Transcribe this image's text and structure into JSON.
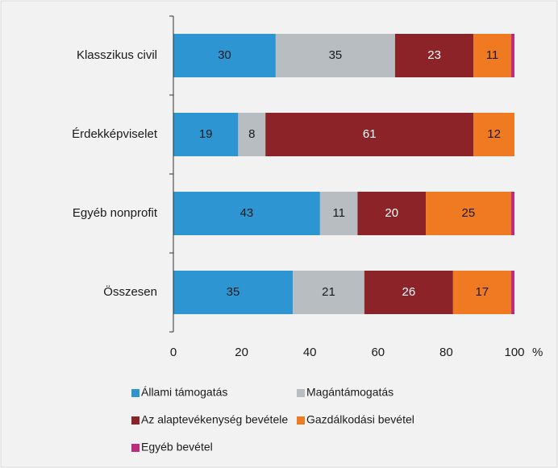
{
  "chart_data": {
    "type": "stacked_barh",
    "categories": [
      "Klasszikus civil",
      "Érdekképviselet",
      "Egyéb nonprofit",
      "Összesen"
    ],
    "series": [
      {
        "name": "Állami támogatás",
        "color": "#2e95d3",
        "values": [
          30,
          19,
          43,
          35
        ]
      },
      {
        "name": "Magántámogatás",
        "color": "#b8bdc1",
        "values": [
          35,
          8,
          11,
          21
        ]
      },
      {
        "name": "Az alaptevékenység bevétele",
        "color": "#8c2329",
        "values": [
          23,
          61,
          20,
          26
        ]
      },
      {
        "name": "Gazdálkodási bevétel",
        "color": "#f07a22",
        "values": [
          11,
          12,
          25,
          17
        ]
      },
      {
        "name": "Egyéb bevétel",
        "color": "#c22a7c",
        "values": [
          1,
          0,
          1,
          1
        ]
      }
    ],
    "x_label": "%",
    "xlim": [
      0,
      100
    ],
    "xticks": [
      0,
      20,
      40,
      60,
      80,
      100
    ],
    "legend": "bottom"
  }
}
